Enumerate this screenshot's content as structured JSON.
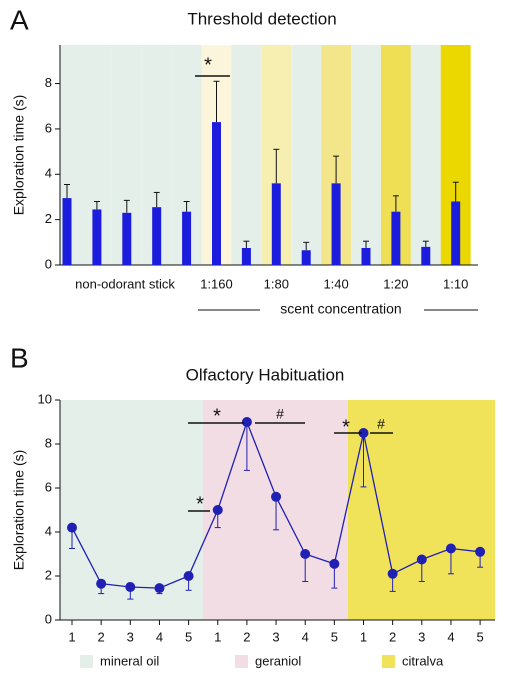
{
  "chart_data": [
    {
      "type": "bar",
      "panel": "A",
      "title": "Threshold detection",
      "y_label": "Exploration time (s)",
      "x_label": "scent concentration",
      "group_label": "non-odorant stick",
      "categories": [
        null,
        null,
        null,
        null,
        null,
        "1:160",
        null,
        "1:80",
        null,
        "1:40",
        null,
        "1:20",
        null,
        "1:10"
      ],
      "values": [
        2.95,
        2.45,
        2.3,
        2.55,
        2.35,
        6.3,
        0.75,
        3.6,
        0.65,
        3.6,
        0.75,
        2.35,
        0.8,
        2.8
      ],
      "errors": [
        0.6,
        0.35,
        0.55,
        0.65,
        0.45,
        1.8,
        0.3,
        1.5,
        0.35,
        1.2,
        0.3,
        0.7,
        0.25,
        0.85
      ],
      "color": "#1c1cdc",
      "backgrounds": [
        "#e4efe9",
        "#e4efe9",
        "#e4efe9",
        "#e4efe9",
        "#e4efe9",
        "#fbf5dc",
        "#e4efe9",
        "#f7efb2",
        "#e4efe9",
        "#f3e68a",
        "#e4efe9",
        "#efdf55",
        "#e4efe9",
        "#ead800"
      ],
      "annotations": [
        "*"
      ],
      "ylim": [
        0,
        9.7
      ],
      "yticks": [
        0,
        2,
        4,
        6,
        8
      ]
    },
    {
      "type": "line",
      "panel": "B",
      "title": "Olfactory Habituation",
      "y_label": "Exploration time (s)",
      "categories": [
        "1",
        "2",
        "3",
        "4",
        "5",
        "1",
        "2",
        "3",
        "4",
        "5",
        "1",
        "2",
        "3",
        "4",
        "5"
      ],
      "values": [
        4.2,
        1.65,
        1.5,
        1.45,
        2.0,
        5.0,
        9.0,
        5.6,
        3.0,
        2.55,
        8.5,
        2.1,
        2.75,
        3.25,
        3.1
      ],
      "errors": [
        0.95,
        0.45,
        0.55,
        0.25,
        0.65,
        0.8,
        2.2,
        1.5,
        1.25,
        1.1,
        2.45,
        0.8,
        1.0,
        1.15,
        0.7
      ],
      "color": "#2020b4",
      "groups": [
        {
          "name": "mineral oil",
          "color": "#e4efe9"
        },
        {
          "name": "geraniol",
          "color": "#f2dde4"
        },
        {
          "name": "citralva",
          "color": "#f0e35a"
        }
      ],
      "annotations": [
        "*",
        "*",
        "#",
        "*",
        "#"
      ],
      "ylim": [
        0,
        10
      ],
      "yticks": [
        0,
        2,
        4,
        6,
        8,
        10
      ]
    }
  ]
}
